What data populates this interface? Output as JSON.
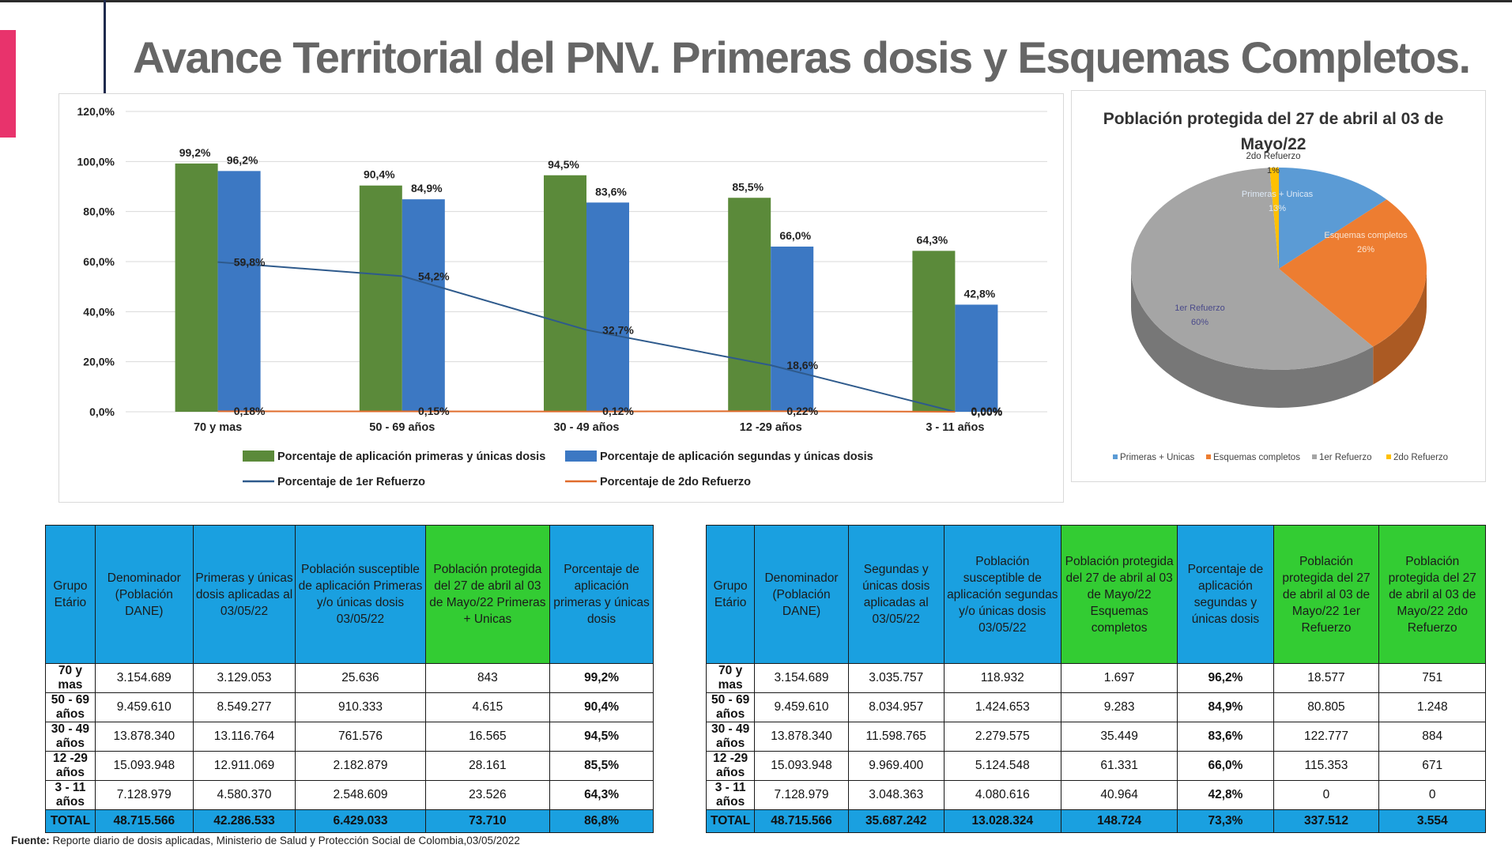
{
  "title": "Avance Territorial del PNV. Primeras dosis y Esquemas Completos.",
  "bar_chart": {
    "legend": [
      {
        "label": "Porcentaje de aplicación primeras y únicas dosis",
        "color": "#5b8a3a"
      },
      {
        "label": "Porcentaje de aplicación segundas y únicas dosis",
        "color": "#3c78c3"
      },
      {
        "label": "Porcentaje de 1er Refuerzo",
        "color": "#2e5a8c"
      },
      {
        "label": "Porcentaje de 2do Refuerzo",
        "color": "#e06c2c"
      }
    ]
  },
  "pie_chart": {
    "title_line1": "Población protegida del  27 de abril al 03 de",
    "title_line2": "Mayo/22"
  },
  "chart_data": [
    {
      "type": "bar",
      "title": "",
      "categories": [
        "70  y mas",
        "50 - 69 años",
        "30 - 49 años",
        "12 -29 años",
        "3 - 11 años"
      ],
      "ylim": [
        0,
        120
      ],
      "yticks": [
        "0,0%",
        "20,0%",
        "40,0%",
        "60,0%",
        "80,0%",
        "100,0%",
        "120,0%"
      ],
      "grid": true,
      "legend_position": "bottom",
      "series": [
        {
          "name": "Porcentaje de aplicación primeras y únicas dosis",
          "kind": "bar",
          "values": [
            99.2,
            90.4,
            94.5,
            85.5,
            64.3
          ],
          "labels": [
            "99,2%",
            "90,4%",
            "94,5%",
            "85,5%",
            "64,3%"
          ],
          "color": "#5b8a3a"
        },
        {
          "name": "Porcentaje de aplicación segundas y únicas dosis",
          "kind": "bar",
          "values": [
            96.2,
            84.9,
            83.6,
            66.0,
            42.8
          ],
          "labels": [
            "96,2%",
            "84,9%",
            "83,6%",
            "66,0%",
            "42,8%"
          ],
          "color": "#3c78c3"
        },
        {
          "name": "Porcentaje de 1er Refuerzo",
          "kind": "line",
          "values": [
            59.8,
            54.2,
            32.7,
            18.6,
            0.0
          ],
          "labels": [
            "59,8%",
            "54,2%",
            "32,7%",
            "18,6%",
            "0,00%"
          ],
          "color": "#2e5a8c"
        },
        {
          "name": "Porcentaje de 2do Refuerzo",
          "kind": "line",
          "values": [
            0.18,
            0.15,
            0.12,
            0.22,
            0.0
          ],
          "labels": [
            "0,18%",
            "0,15%",
            "0,12%",
            "0,22%",
            "0,00%"
          ],
          "color": "#e06c2c"
        }
      ]
    },
    {
      "type": "pie",
      "title": "Población protegida del  27 de abril al 03 de Mayo/22",
      "legend_position": "bottom",
      "slices": [
        {
          "name": "Primeras + Unicas",
          "legend": "Primeras + Unicas",
          "value": 13,
          "label": "13%",
          "color": "#5b9bd5"
        },
        {
          "name": "Esquemas completos",
          "legend": "Esquemas completos",
          "value": 26,
          "label": "26%",
          "color": "#ed7d31"
        },
        {
          "name": "1er Refuerzo",
          "legend": "1er Refuerzo",
          "value": 60,
          "label": "60%",
          "color": "#a5a5a5"
        },
        {
          "name": "2do Refuerzo",
          "legend": "2do Refuerzo",
          "value": 1,
          "label": "1%",
          "color": "#ffc000"
        }
      ]
    }
  ],
  "table1": {
    "headers": [
      "Grupo Etário",
      "Denominador (Población DANE)",
      "Primeras y únicas dosis aplicadas al 03/05/22",
      "Población susceptible de aplicación Primeras y/o únicas dosis 03/05/22",
      "Población protegida del 27 de abril al 03 de Mayo/22 Primeras + Unicas",
      "Porcentaje de aplicación primeras y únicas dosis"
    ],
    "rows": [
      [
        "70  y mas",
        "3.154.689",
        "3.129.053",
        "25.636",
        "843",
        "99,2%"
      ],
      [
        "50 - 69 años",
        "9.459.610",
        "8.549.277",
        "910.333",
        "4.615",
        "90,4%"
      ],
      [
        "30 - 49 años",
        "13.878.340",
        "13.116.764",
        "761.576",
        "16.565",
        "94,5%"
      ],
      [
        "12 -29 años",
        "15.093.948",
        "12.911.069",
        "2.182.879",
        "28.161",
        "85,5%"
      ],
      [
        "3 - 11 años",
        "7.128.979",
        "4.580.370",
        "2.548.609",
        "23.526",
        "64,3%"
      ]
    ],
    "total": [
      "TOTAL",
      "48.715.566",
      "42.286.533",
      "6.429.033",
      "73.710",
      "86,8%"
    ]
  },
  "table2": {
    "headers": [
      "Grupo Etário",
      "Denominador (Población DANE)",
      "Segundas y únicas dosis aplicadas al 03/05/22",
      "Población susceptible de aplicación segundas y/o únicas dosis 03/05/22",
      "Población protegida del  27 de abril al 03 de Mayo/22 Esquemas completos",
      "Porcentaje de aplicación segundas y únicas dosis",
      "Población protegida del 27 de abril al 03 de Mayo/22 1er Refuerzo",
      "Población protegida del 27 de abril al 03 de Mayo/22 2do Refuerzo"
    ],
    "rows": [
      [
        "70  y mas",
        "3.154.689",
        "3.035.757",
        "118.932",
        "1.697",
        "96,2%",
        "18.577",
        "751"
      ],
      [
        "50 - 69 años",
        "9.459.610",
        "8.034.957",
        "1.424.653",
        "9.283",
        "84,9%",
        "80.805",
        "1.248"
      ],
      [
        "30 - 49 años",
        "13.878.340",
        "11.598.765",
        "2.279.575",
        "35.449",
        "83,6%",
        "122.777",
        "884"
      ],
      [
        "12 -29 años",
        "15.093.948",
        "9.969.400",
        "5.124.548",
        "61.331",
        "66,0%",
        "115.353",
        "671"
      ],
      [
        "3 - 11 años",
        "7.128.979",
        "3.048.363",
        "4.080.616",
        "40.964",
        "42,8%",
        "0",
        "0"
      ]
    ],
    "total": [
      "TOTAL",
      "48.715.566",
      "35.687.242",
      "13.028.324",
      "148.724",
      "73,3%",
      "337.512",
      "3.554"
    ]
  },
  "footer": {
    "label": "Fuente:",
    "text": " Reporte diario de dosis aplicadas, Ministerio de Salud y Protección Social de Colombia,03/05/2022"
  }
}
